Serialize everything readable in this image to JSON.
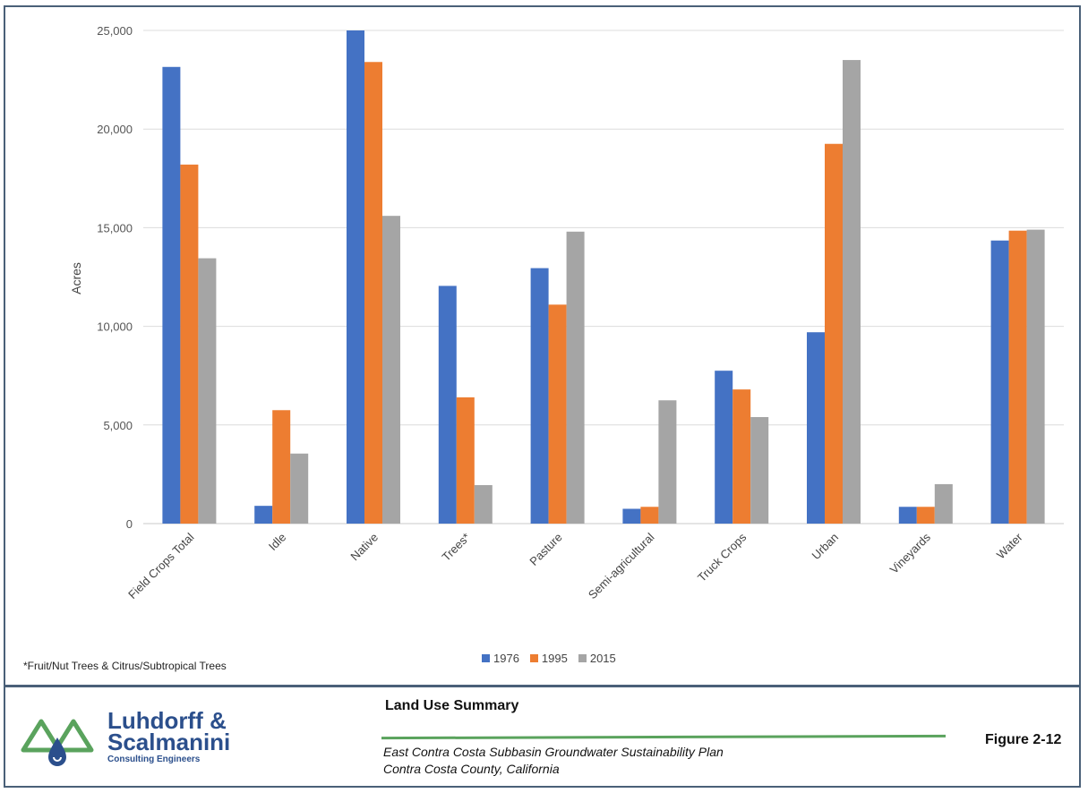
{
  "chart_data": {
    "type": "bar",
    "title": "",
    "ylabel": "Acres",
    "xlabel": "",
    "ylim": [
      0,
      25000
    ],
    "yticks": [
      0,
      5000,
      10000,
      15000,
      20000,
      25000
    ],
    "ytick_labels": [
      "0",
      "5,000",
      "10,000",
      "15,000",
      "20,000",
      "25,000"
    ],
    "grid": true,
    "legend_position": "bottom",
    "categories": [
      "Field Crops Total",
      "Idle",
      "Native",
      "Trees*",
      "Pasture",
      "Semi-agricultural",
      "Truck Crops",
      "Urban",
      "Vineyards",
      "Water"
    ],
    "series": [
      {
        "name": "1976",
        "color": "#4472c4",
        "values": [
          23150,
          900,
          25000,
          12050,
          12950,
          750,
          7750,
          9700,
          850,
          14350
        ]
      },
      {
        "name": "1995",
        "color": "#ed7d31",
        "values": [
          18200,
          5750,
          23400,
          6400,
          11100,
          850,
          6800,
          19250,
          850,
          14850
        ]
      },
      {
        "name": "2015",
        "color": "#a5a5a5",
        "values": [
          13450,
          3550,
          15600,
          1950,
          14800,
          6250,
          5400,
          23500,
          2000,
          14900
        ]
      }
    ]
  },
  "footnote": "*Fruit/Nut Trees & Citrus/Subtropical Trees",
  "figure": {
    "title": "Land Use Summary",
    "subtitle_line1": "East Contra Costa Subbasin Groundwater Sustainability Plan",
    "subtitle_line2": "Contra Costa County, California",
    "number": "Figure 2-12"
  },
  "logo": {
    "line1": "Luhdorff &",
    "line2": "Scalmanini",
    "line3": "Consulting Engineers",
    "icon": "triangle-water-drop-logo-icon"
  }
}
